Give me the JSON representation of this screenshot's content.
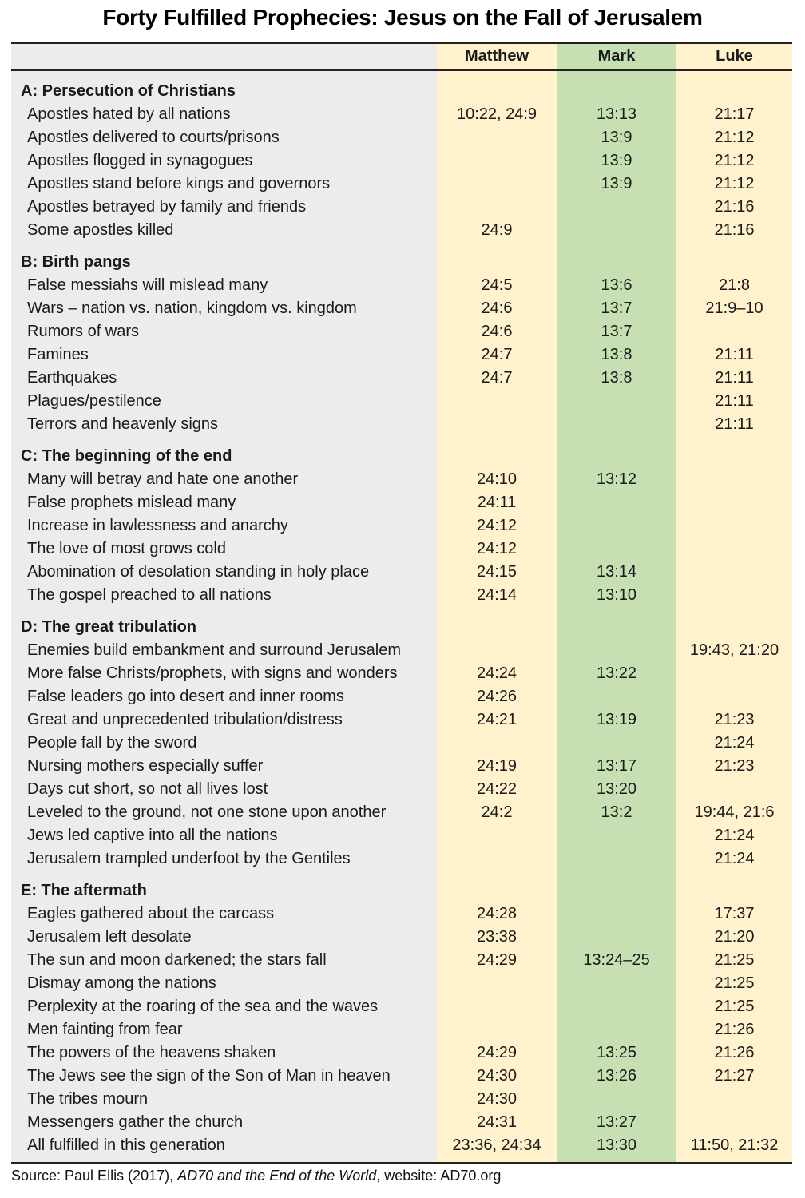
{
  "title": "Forty Fulfilled Prophecies: Jesus on the Fall of Jerusalem",
  "columns": [
    "",
    "Matthew",
    "Mark",
    "Luke"
  ],
  "colors": {
    "label_bg": "#ececec",
    "matthew_bg": "#fff2cc",
    "mark_bg": "#c6e0b4",
    "luke_bg": "#fff2cc"
  },
  "sections": [
    {
      "heading": "A: Persecution of Christians",
      "rows": [
        [
          "Apostles hated by all nations",
          "10:22, 24:9",
          "13:13",
          "21:17"
        ],
        [
          "Apostles delivered to courts/prisons",
          "",
          "13:9",
          "21:12"
        ],
        [
          "Apostles flogged in synagogues",
          "",
          "13:9",
          "21:12"
        ],
        [
          "Apostles stand before kings and governors",
          "",
          "13:9",
          "21:12"
        ],
        [
          "Apostles betrayed by family and friends",
          "",
          "",
          "21:16"
        ],
        [
          "Some apostles killed",
          "24:9",
          "",
          "21:16"
        ]
      ]
    },
    {
      "heading": "B: Birth pangs",
      "rows": [
        [
          "False messiahs will mislead many",
          "24:5",
          "13:6",
          "21:8"
        ],
        [
          "Wars – nation vs. nation, kingdom vs. kingdom",
          "24:6",
          "13:7",
          "21:9–10"
        ],
        [
          "Rumors of wars",
          "24:6",
          "13:7",
          ""
        ],
        [
          "Famines",
          "24:7",
          "13:8",
          "21:11"
        ],
        [
          "Earthquakes",
          "24:7",
          "13:8",
          "21:11"
        ],
        [
          "Plagues/pestilence",
          "",
          "",
          "21:11"
        ],
        [
          "Terrors and heavenly signs",
          "",
          "",
          "21:11"
        ]
      ]
    },
    {
      "heading": "C: The beginning of the end",
      "rows": [
        [
          "Many will betray and hate one another",
          "24:10",
          "13:12",
          ""
        ],
        [
          "False prophets mislead many",
          "24:11",
          "",
          ""
        ],
        [
          "Increase in lawlessness and anarchy",
          "24:12",
          "",
          ""
        ],
        [
          "The love of most grows cold",
          "24:12",
          "",
          ""
        ],
        [
          "Abomination of desolation standing in holy place",
          "24:15",
          "13:14",
          ""
        ],
        [
          "The gospel preached to all nations",
          "24:14",
          "13:10",
          ""
        ]
      ]
    },
    {
      "heading": "D: The great tribulation",
      "rows": [
        [
          "Enemies build embankment and surround Jerusalem",
          "",
          "",
          "19:43, 21:20"
        ],
        [
          "More false Christs/prophets, with signs and wonders",
          "24:24",
          "13:22",
          ""
        ],
        [
          "False leaders go into desert and inner rooms",
          "24:26",
          "",
          ""
        ],
        [
          "Great and unprecedented tribulation/distress",
          "24:21",
          "13:19",
          "21:23"
        ],
        [
          "People fall by the sword",
          "",
          "",
          "21:24"
        ],
        [
          "Nursing mothers especially suffer",
          "24:19",
          "13:17",
          "21:23"
        ],
        [
          "Days cut short, so not all lives lost",
          "24:22",
          "13:20",
          ""
        ],
        [
          "Leveled to the ground, not one stone upon another",
          "24:2",
          "13:2",
          "19:44, 21:6"
        ],
        [
          "Jews led captive into all the nations",
          "",
          "",
          "21:24"
        ],
        [
          "Jerusalem trampled underfoot by the Gentiles",
          "",
          "",
          "21:24"
        ]
      ]
    },
    {
      "heading": "E: The aftermath",
      "rows": [
        [
          "Eagles gathered about the carcass",
          "24:28",
          "",
          "17:37"
        ],
        [
          "Jerusalem left desolate",
          "23:38",
          "",
          "21:20"
        ],
        [
          "The sun and moon darkened; the stars fall",
          "24:29",
          "13:24–25",
          "21:25"
        ],
        [
          "Dismay among the nations",
          "",
          "",
          "21:25"
        ],
        [
          "Perplexity at the roaring of the sea and the waves",
          "",
          "",
          "21:25"
        ],
        [
          "Men fainting from fear",
          "",
          "",
          "21:26"
        ],
        [
          "The powers of the heavens shaken",
          "24:29",
          "13:25",
          "21:26"
        ],
        [
          "The Jews see the sign of the Son of Man in heaven",
          "24:30",
          "13:26",
          "21:27"
        ],
        [
          "The tribes mourn",
          "24:30",
          "",
          ""
        ],
        [
          "Messengers gather the church",
          "24:31",
          "13:27",
          ""
        ],
        [
          "All fulfilled in this generation",
          "23:36, 24:34",
          "13:30",
          "11:50, 21:32"
        ]
      ]
    }
  ],
  "source": {
    "prefix": "Source: Paul Ellis (2017), ",
    "book": "AD70 and the End of the World",
    "suffix": ", website: AD70.org"
  }
}
